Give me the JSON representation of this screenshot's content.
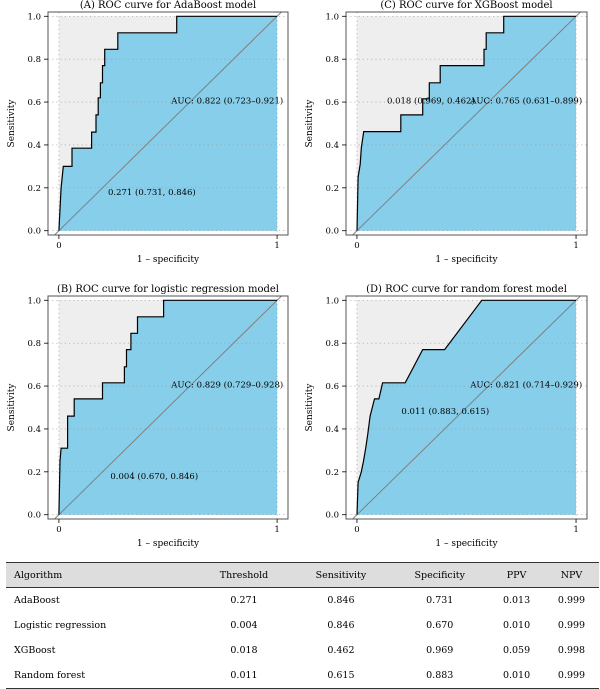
{
  "chart_data": [
    {
      "type": "line",
      "title": "(A) ROC curve for AdaBoost model",
      "xlabel": "1 – specificity",
      "ylabel": "Sensitivity",
      "x_ticks": [
        "0",
        "1"
      ],
      "y_ticks": [
        "0.0",
        "0.2",
        "0.4",
        "0.6",
        "0.8",
        "1.0"
      ],
      "xlim": [
        -0.05,
        1.05
      ],
      "ylim": [
        -0.02,
        1.02
      ],
      "grid": true,
      "annotation": "0.271 (0.731, 0.846)",
      "optimal_point": {
        "fpr": 0.269,
        "sensitivity": 0.846
      },
      "auc_label": "AUC: 0.822 (0.723–0.921)",
      "points": [
        [
          0,
          0
        ],
        [
          0.01,
          0.2
        ],
        [
          0.02,
          0.3
        ],
        [
          0.06,
          0.3
        ],
        [
          0.06,
          0.385
        ],
        [
          0.15,
          0.385
        ],
        [
          0.15,
          0.46
        ],
        [
          0.17,
          0.46
        ],
        [
          0.17,
          0.54
        ],
        [
          0.18,
          0.54
        ],
        [
          0.18,
          0.62
        ],
        [
          0.19,
          0.62
        ],
        [
          0.19,
          0.69
        ],
        [
          0.2,
          0.69
        ],
        [
          0.2,
          0.77
        ],
        [
          0.21,
          0.77
        ],
        [
          0.21,
          0.846
        ],
        [
          0.27,
          0.846
        ],
        [
          0.27,
          0.923
        ],
        [
          0.54,
          0.923
        ],
        [
          0.54,
          1
        ],
        [
          1,
          1
        ]
      ],
      "colors": {
        "fill_under": "#87ceeb",
        "fill_above": "#eeeeee",
        "curve": "#000000",
        "diagonal": "#808080"
      }
    },
    {
      "type": "line",
      "title": "(C) ROC curve for XGBoost model",
      "xlabel": "1 – specificity",
      "ylabel": "Sensitivity",
      "x_ticks": [
        "0",
        "1"
      ],
      "y_ticks": [
        "0.0",
        "0.2",
        "0.4",
        "0.6",
        "0.8",
        "1.0"
      ],
      "xlim": [
        -0.05,
        1.05
      ],
      "ylim": [
        -0.02,
        1.02
      ],
      "grid": true,
      "annotation": "0.018 (0.969, 0.462)",
      "optimal_point": {
        "fpr": 0.031,
        "sensitivity": 0.462
      },
      "auc_label": "AUC: 0.765 (0.631–0.899)",
      "points": [
        [
          0,
          0
        ],
        [
          0.005,
          0.25
        ],
        [
          0.015,
          0.31
        ],
        [
          0.02,
          0.385
        ],
        [
          0.031,
          0.462
        ],
        [
          0.2,
          0.462
        ],
        [
          0.2,
          0.54
        ],
        [
          0.3,
          0.54
        ],
        [
          0.3,
          0.615
        ],
        [
          0.33,
          0.615
        ],
        [
          0.33,
          0.69
        ],
        [
          0.38,
          0.69
        ],
        [
          0.38,
          0.77
        ],
        [
          0.58,
          0.77
        ],
        [
          0.58,
          0.846
        ],
        [
          0.59,
          0.846
        ],
        [
          0.59,
          0.923
        ],
        [
          0.67,
          0.923
        ],
        [
          0.67,
          1
        ],
        [
          1,
          1
        ]
      ],
      "colors": {
        "fill_under": "#87ceeb",
        "fill_above": "#eeeeee",
        "curve": "#000000",
        "diagonal": "#808080"
      }
    },
    {
      "type": "line",
      "title": "(B) ROC curve for logistic regression model",
      "xlabel": "1 – specificity",
      "ylabel": "Sensitivity",
      "x_ticks": [
        "0",
        "1"
      ],
      "y_ticks": [
        "0.0",
        "0.2",
        "0.4",
        "0.6",
        "0.8",
        "1.0"
      ],
      "xlim": [
        -0.05,
        1.05
      ],
      "ylim": [
        -0.02,
        1.02
      ],
      "grid": true,
      "annotation": "0.004 (0.670, 0.846)",
      "optimal_point": {
        "fpr": 0.33,
        "sensitivity": 0.846
      },
      "auc_label": "AUC: 0.829 (0.729–0.928)",
      "points": [
        [
          0,
          0
        ],
        [
          0.005,
          0.25
        ],
        [
          0.01,
          0.31
        ],
        [
          0.04,
          0.31
        ],
        [
          0.04,
          0.46
        ],
        [
          0.07,
          0.46
        ],
        [
          0.07,
          0.54
        ],
        [
          0.2,
          0.54
        ],
        [
          0.2,
          0.615
        ],
        [
          0.3,
          0.615
        ],
        [
          0.3,
          0.69
        ],
        [
          0.31,
          0.69
        ],
        [
          0.31,
          0.77
        ],
        [
          0.33,
          0.77
        ],
        [
          0.33,
          0.846
        ],
        [
          0.36,
          0.846
        ],
        [
          0.36,
          0.923
        ],
        [
          0.48,
          0.923
        ],
        [
          0.48,
          1
        ],
        [
          1,
          1
        ]
      ],
      "colors": {
        "fill_under": "#87ceeb",
        "fill_above": "#eeeeee",
        "curve": "#000000",
        "diagonal": "#808080"
      }
    },
    {
      "type": "line",
      "title": "(D) ROC curve for random forest model",
      "xlabel": "1 – specificity",
      "ylabel": "Sensitivity",
      "x_ticks": [
        "0",
        "1"
      ],
      "y_ticks": [
        "0.0",
        "0.2",
        "0.4",
        "0.6",
        "0.8",
        "1.0"
      ],
      "xlim": [
        -0.05,
        1.05
      ],
      "ylim": [
        -0.02,
        1.02
      ],
      "grid": true,
      "annotation": "0.011 (0.883, 0.615)",
      "optimal_point": {
        "fpr": 0.117,
        "sensitivity": 0.615
      },
      "auc_label": "AUC: 0.821 (0.714–0.929)",
      "points": [
        [
          0,
          0
        ],
        [
          0.005,
          0.15
        ],
        [
          0.02,
          0.2
        ],
        [
          0.03,
          0.25
        ],
        [
          0.04,
          0.31
        ],
        [
          0.05,
          0.38
        ],
        [
          0.06,
          0.46
        ],
        [
          0.08,
          0.54
        ],
        [
          0.1,
          0.54
        ],
        [
          0.117,
          0.615
        ],
        [
          0.22,
          0.615
        ],
        [
          0.3,
          0.77
        ],
        [
          0.4,
          0.77
        ],
        [
          0.57,
          1
        ],
        [
          1,
          1
        ]
      ],
      "colors": {
        "fill_under": "#87ceeb",
        "fill_above": "#eeeeee",
        "curve": "#000000",
        "diagonal": "#808080"
      }
    }
  ],
  "table": {
    "headers": [
      "Algorithm",
      "Threshold",
      "Sensitivity",
      "Specificity",
      "PPV",
      "NPV"
    ],
    "rows": [
      [
        "AdaBoost",
        "0.271",
        "0.846",
        "0.731",
        "0.013",
        "0.999"
      ],
      [
        "Logistic regression",
        "0.004",
        "0.846",
        "0.670",
        "0.010",
        "0.999"
      ],
      [
        "XGBoost",
        "0.018",
        "0.462",
        "0.969",
        "0.059",
        "0.998"
      ],
      [
        "Random forest",
        "0.011",
        "0.615",
        "0.883",
        "0.010",
        "0.999"
      ]
    ]
  }
}
